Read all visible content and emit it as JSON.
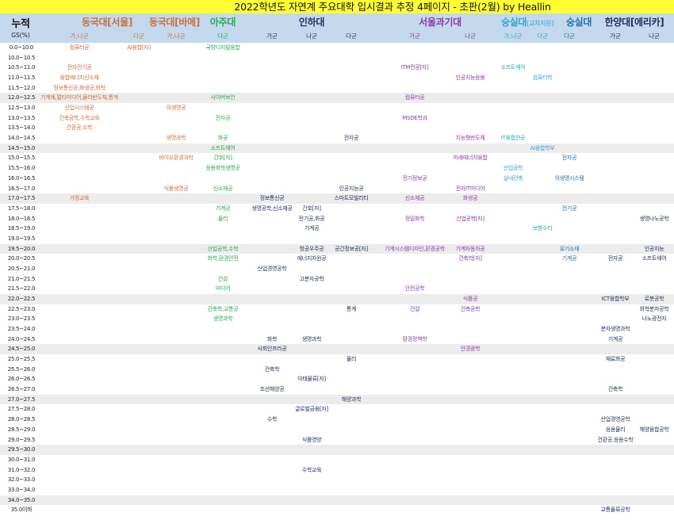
{
  "title": "2022학년도 자연계 주요대학 입시결과 추정 4페이지 - 초판(2월) by Heallin",
  "colors": {
    "title_bg": "#ffff33",
    "header_bg": "#c5d9ee",
    "shade_row": "#ececec",
    "dongguk": "#c8703a",
    "ajou": "#2aa84f",
    "inha": "#1f2f5a",
    "seoultech": "#8a3aa6",
    "soongsil_cross": "#2fa3cf",
    "soongsil": "#2070b0",
    "hanyang_erica": "#1f2f5a"
  },
  "header": {
    "corner_label": "누적",
    "corner_sub": "GS(%)",
    "universities": [
      {
        "name": "동국대[서울]",
        "color": "#c8703a"
      },
      {
        "name": "동국대[바메]",
        "color": "#c8703a"
      },
      {
        "name": "아주대",
        "color": "#2aa84f"
      },
      {
        "name": "인하대",
        "color": "#1f2f5a"
      },
      {
        "name": "서울과기대",
        "color": "#8a3aa6"
      },
      {
        "name": "숭실대",
        "suffix": "[교차지원]",
        "color": "#2fa3cf"
      },
      {
        "name": "숭실대",
        "color": "#2070b0"
      },
      {
        "name": "한양대[에리카]",
        "color": "#1f2f5a"
      }
    ],
    "groups": [
      "가,나군",
      "다군",
      "가,나군",
      "다군",
      "가군",
      "나군",
      "다군",
      "가군",
      "나군",
      "가,나군",
      "다군",
      "다군",
      "가군",
      "나군"
    ]
  },
  "rows": [
    {
      "range": "0.0~10.0",
      "cells": {
        "dgs_ab": "컴퓨터공",
        "dgs_c": "AI융합[자]",
        "aju_c": "국방디지털융합"
      }
    },
    {
      "range": "10.0~10.5",
      "cells": {}
    },
    {
      "range": "10.5~11.0",
      "cells": {
        "dgs_ab": "전자전기공",
        "st_a": "ITM전공[자]",
        "ssk_ab": "소프트웨어"
      }
    },
    {
      "range": "11.0~11.5",
      "cells": {
        "dgs_ab": "융합에너지신소재",
        "st_b": "인공지능응용",
        "ssk_c": "컴퓨터학"
      }
    },
    {
      "range": "11.5~12.0",
      "cells": {
        "dgs_ab": "정보통신공,화생공,화학"
      }
    },
    {
      "range": "12.0~12.5",
      "shade": true,
      "cells": {
        "dgs_ab": "기계예,멀티미디어,물리반도체,통계",
        "aju_c": "사이버보안",
        "st_a": "컴퓨터공"
      }
    },
    {
      "range": "12.5~13.0",
      "cells": {
        "dgs_ab": "산업시스템공",
        "dgb_ab": "의생명공"
      }
    },
    {
      "range": "13.0~13.5",
      "cells": {
        "dgs_ab": "건축공학,수학교육",
        "aju_c": "전자공",
        "st_a": "MSDE학과"
      }
    },
    {
      "range": "13.5~14.0",
      "cells": {
        "dgs_ab": "건환공,수학"
      }
    },
    {
      "range": "14.0~14.5",
      "cells": {
        "dgb_ab": "생명과학",
        "aju_c": "화공",
        "inha_c": "전자공",
        "st_b": "지능형반도체",
        "ssk_ab": "IT융합전공"
      }
    },
    {
      "range": "14.5~15.0",
      "shade": true,
      "cells": {
        "aju_c": "소프트웨어",
        "ssk_c": "AI융합학부"
      }
    },
    {
      "range": "15.0~15.5",
      "cells": {
        "dgb_ab": "바이오환경과학",
        "aju_c": "간호[자]",
        "st_b": "미래에너지융합",
        "ss_c": "전자공"
      }
    },
    {
      "range": "15.5~16.0",
      "cells": {
        "aju_c": "응용화학생명공",
        "ssk_ab": "산업공학"
      }
    },
    {
      "range": "16.0~16.5",
      "cells": {
        "st_a": "전기정보공",
        "ssk_ab": "실내건축",
        "ss_c": "의생명시스템"
      }
    },
    {
      "range": "16.5~17.0",
      "cells": {
        "dgb_ab": "식품생명공",
        "aju_c": "신소재공",
        "inha_c": "인공지능공",
        "st_b": "전자IT미디어"
      }
    },
    {
      "range": "17.0~17.5",
      "shade": true,
      "cells": {
        "dgs_ab": "가정교육",
        "inha_a": "정보통신공",
        "inha_c": "스마트모빌리티",
        "st_a": "신소재공",
        "st_b": "화생공"
      }
    },
    {
      "range": "17.5~18.0",
      "cells": {
        "aju_c": "기계공",
        "inha_a": "생명공학,신소재공",
        "inha_b": "간호[자]",
        "ss_c": "전기공"
      }
    },
    {
      "range": "18.0~18.5",
      "cells": {
        "aju_c": "물리",
        "inha_b": "전기공,화공",
        "st_a": "정밀화학",
        "st_b": "산업공학[자]",
        "hy_b": "생명나노공학"
      }
    },
    {
      "range": "18.5~19.0",
      "cells": {
        "inha_b": "기계공",
        "ssk_c": "보험수리"
      }
    },
    {
      "range": "19.0~19.5",
      "cells": {}
    },
    {
      "range": "19.5~20.0",
      "shade": true,
      "cells": {
        "aju_c": "산업공학,수학",
        "inha_b": "항공우주공",
        "inha_c": "공간정보공[자]",
        "st_a": "기계시스템디자인,환경공학",
        "st_b": "기계자동차공",
        "ss_c": "유기소재",
        "hy_b": "인공지능"
      }
    },
    {
      "range": "20.0~20.5",
      "cells": {
        "aju_c": "화학,환경안전",
        "inha_b": "에너지자원공",
        "st_b": "건축학[자]",
        "ss_c": "기계공",
        "hy_a": "전자공",
        "hy_b": "소프트웨어"
      }
    },
    {
      "range": "20.5~21.0",
      "cells": {
        "inha_a": "산업경영공학"
      }
    },
    {
      "range": "21.0~21.5",
      "cells": {
        "aju_c": "건설",
        "inha_b": "고분자공학"
      }
    },
    {
      "range": "21.5~22.0",
      "cells": {
        "aju_c": "미디어",
        "st_a": "안전공학"
      }
    },
    {
      "range": "22.0~22.5",
      "shade": true,
      "cells": {
        "st_b": "식품공",
        "hy_a": "ICT융합학부",
        "hy_b": "로봇공학"
      }
    },
    {
      "range": "22.5~23.0",
      "cells": {
        "aju_c": "건축학,교통공",
        "inha_c": "통계",
        "st_a": "건설",
        "st_b": "건축공학",
        "hy_b": "화학분자공학"
      }
    },
    {
      "range": "23.0~23.5",
      "cells": {
        "aju_c": "생명과학",
        "hy_b": "나노광전자"
      }
    },
    {
      "range": "23.5~24.0",
      "cells": {
        "hy_a": "분자생명과학"
      }
    },
    {
      "range": "24.0~24.5",
      "cells": {
        "inha_a": "화학",
        "inha_b": "생명과학",
        "st_a": "환경정책학",
        "hy_a": "기계공"
      }
    },
    {
      "range": "24.5~25.0",
      "shade": true,
      "cells": {
        "inha_a": "사회인프라공",
        "st_b": "안경광학"
      }
    },
    {
      "range": "25.0~25.5",
      "cells": {
        "inha_c": "물리",
        "hy_a": "재료화공"
      }
    },
    {
      "range": "25.5~26.0",
      "cells": {
        "inha_a": "건축학"
      }
    },
    {
      "range": "26.0~26.5",
      "cells": {
        "inha_b": "아태물류[자]"
      }
    },
    {
      "range": "26.5~27.0",
      "cells": {
        "inha_a": "조선해양공",
        "hy_a": "건축학"
      }
    },
    {
      "range": "27.0~27.5",
      "shade": true,
      "cells": {
        "inha_c": "해양과학"
      }
    },
    {
      "range": "27.5~28.0",
      "cells": {
        "inha_b": "글로벌금융[자]"
      }
    },
    {
      "range": "28.0~28.5",
      "cells": {
        "inha_a": "수학",
        "hy_a": "산업경영공학"
      }
    },
    {
      "range": "28.5~29.0",
      "cells": {
        "hy_a": "응용물리",
        "hy_b": "해양융합공학"
      }
    },
    {
      "range": "29.0~29.5",
      "cells": {
        "inha_b": "식품영양",
        "hy_a": "건환공,응용수학"
      }
    },
    {
      "range": "29.5~30.0",
      "shade": true,
      "cells": {}
    },
    {
      "range": "30.0~31.0",
      "cells": {}
    },
    {
      "range": "31.0~32.0",
      "cells": {
        "inha_b": "수학교육"
      }
    },
    {
      "range": "32.0~33.0",
      "cells": {}
    },
    {
      "range": "33.0~34.0",
      "cells": {}
    },
    {
      "range": "34.0~35.0",
      "shade": true,
      "cells": {}
    },
    {
      "range": "35.0이하",
      "cells": {
        "hy_a": "교통물류공학"
      }
    }
  ]
}
